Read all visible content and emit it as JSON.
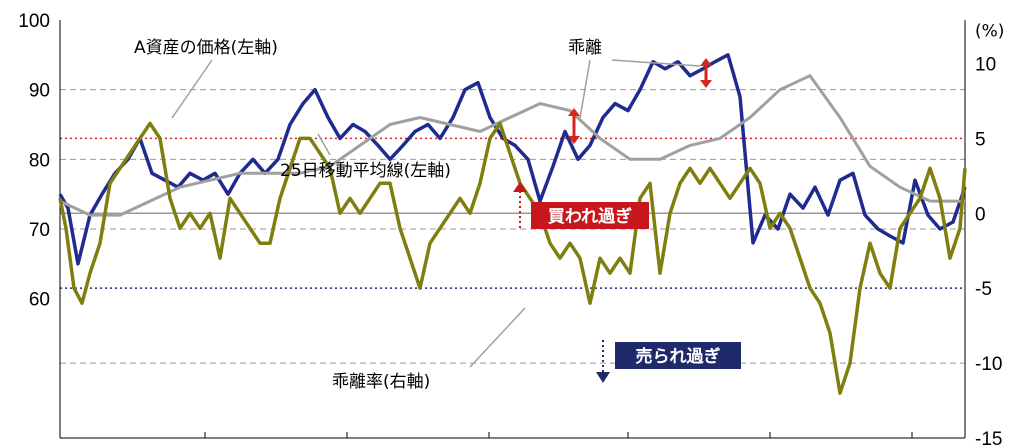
{
  "chart_data": {
    "type": "line",
    "left_axis": {
      "ticks": [
        60,
        70,
        80,
        90,
        100
      ],
      "ylim": [
        40,
        100
      ]
    },
    "right_axis": {
      "unit": "(%)",
      "ticks": [
        10,
        5,
        0,
        -5,
        -10,
        -15
      ],
      "ylim": [
        -15,
        12.9
      ]
    },
    "grid": "dashed horizontal",
    "thresholds": [
      {
        "value": 5,
        "axis": "right",
        "color": "#d9261c"
      },
      {
        "value": -5,
        "axis": "right",
        "color": "#1f2a6b"
      },
      {
        "value": 0,
        "axis": "right",
        "color": "#999999"
      }
    ],
    "series": [
      {
        "name": "A資産の価格(左軸)",
        "axis": "left",
        "color": "#1f2b8f",
        "x": [
          0,
          8,
          18,
          30,
          42,
          55,
          68,
          80,
          92,
          105,
          118,
          130,
          143,
          155,
          168,
          180,
          193,
          205,
          218,
          230,
          243,
          255,
          268,
          280,
          293,
          305,
          318,
          330,
          343,
          355,
          368,
          380,
          393,
          405,
          418,
          430,
          443,
          455,
          468,
          480,
          493,
          505,
          518,
          530,
          543,
          555,
          568,
          580,
          593,
          605,
          618,
          630,
          643,
          655,
          668,
          680,
          693,
          705,
          718,
          730,
          743,
          755,
          768,
          780,
          793,
          805,
          818,
          830,
          843,
          855,
          868,
          880,
          893,
          905
        ],
        "values": [
          75,
          73,
          65,
          72,
          75,
          78,
          80,
          83,
          78,
          77,
          76,
          78,
          77,
          78,
          75,
          78,
          80,
          78,
          80,
          85,
          88,
          90,
          86,
          83,
          85,
          84,
          82,
          80,
          82,
          84,
          85,
          83,
          86,
          90,
          91,
          86,
          83,
          82,
          80,
          74,
          79,
          84,
          80,
          82,
          86,
          88,
          87,
          90,
          94,
          93,
          94,
          92,
          93,
          94,
          95,
          89,
          68,
          72,
          70,
          75,
          73,
          76,
          72,
          77,
          78,
          72,
          70,
          69,
          68,
          77,
          72,
          70,
          71,
          76
        ]
      },
      {
        "name": "25日移動平均線(左軸)",
        "axis": "left",
        "color": "#a0a0a0",
        "x": [
          0,
          30,
          60,
          90,
          120,
          150,
          180,
          210,
          240,
          270,
          300,
          330,
          360,
          390,
          420,
          450,
          480,
          510,
          540,
          570,
          600,
          630,
          660,
          690,
          720,
          750,
          780,
          810,
          840,
          870,
          905
        ],
        "values": [
          74,
          72,
          72,
          74,
          76,
          77,
          78,
          78,
          78,
          79,
          82,
          85,
          86,
          85,
          84,
          86,
          88,
          87,
          83,
          80,
          80,
          82,
          83,
          86,
          90,
          92,
          86,
          79,
          76,
          74,
          74
        ]
      },
      {
        "name": "乖離率(右軸)",
        "axis": "right",
        "color": "#7f7f10",
        "x": [
          0,
          6,
          14,
          22,
          30,
          40,
          50,
          60,
          70,
          80,
          90,
          100,
          110,
          120,
          130,
          140,
          150,
          160,
          170,
          180,
          190,
          200,
          210,
          220,
          230,
          240,
          250,
          260,
          270,
          280,
          290,
          300,
          310,
          320,
          330,
          340,
          350,
          360,
          370,
          380,
          390,
          400,
          410,
          420,
          430,
          440,
          450,
          460,
          470,
          480,
          490,
          500,
          510,
          520,
          530,
          540,
          550,
          560,
          570,
          580,
          590,
          600,
          610,
          620,
          630,
          640,
          650,
          660,
          670,
          680,
          690,
          700,
          710,
          720,
          730,
          740,
          750,
          760,
          770,
          780,
          790,
          800,
          810,
          820,
          830,
          840,
          850,
          860,
          870,
          880,
          890,
          900,
          905
        ],
        "values": [
          1,
          -1,
          -5,
          -6,
          -4,
          -2,
          2,
          3,
          4,
          5,
          6,
          5,
          1,
          -1,
          0,
          -1,
          0,
          -3,
          1,
          0,
          -1,
          -2,
          -2,
          1,
          3,
          5,
          5,
          4,
          3,
          0,
          1,
          0,
          1,
          2,
          2,
          -1,
          -3,
          -5,
          -2,
          -1,
          0,
          1,
          0,
          2,
          5,
          6,
          4,
          2,
          1,
          0,
          -2,
          -3,
          -2,
          -3,
          -6,
          -3,
          -4,
          -3,
          -4,
          1,
          2,
          -4,
          0,
          2,
          3,
          2,
          3,
          2,
          1,
          2,
          3,
          2,
          -1,
          0,
          -1,
          -3,
          -5,
          -6,
          -8,
          -12,
          -10,
          -5,
          -2,
          -4,
          -5,
          -1,
          0,
          1,
          3,
          1,
          -3,
          -1,
          3
        ]
      }
    ],
    "annotations": [
      "A資産の価格(左軸)",
      "乖離",
      "25日移動平均線(左軸)",
      "乖離率(右軸)"
    ],
    "badges": [
      {
        "text": "買われ過ぎ",
        "color": "#c8161d"
      },
      {
        "text": "売られ過ぎ",
        "color": "#1f2a6b"
      }
    ]
  }
}
